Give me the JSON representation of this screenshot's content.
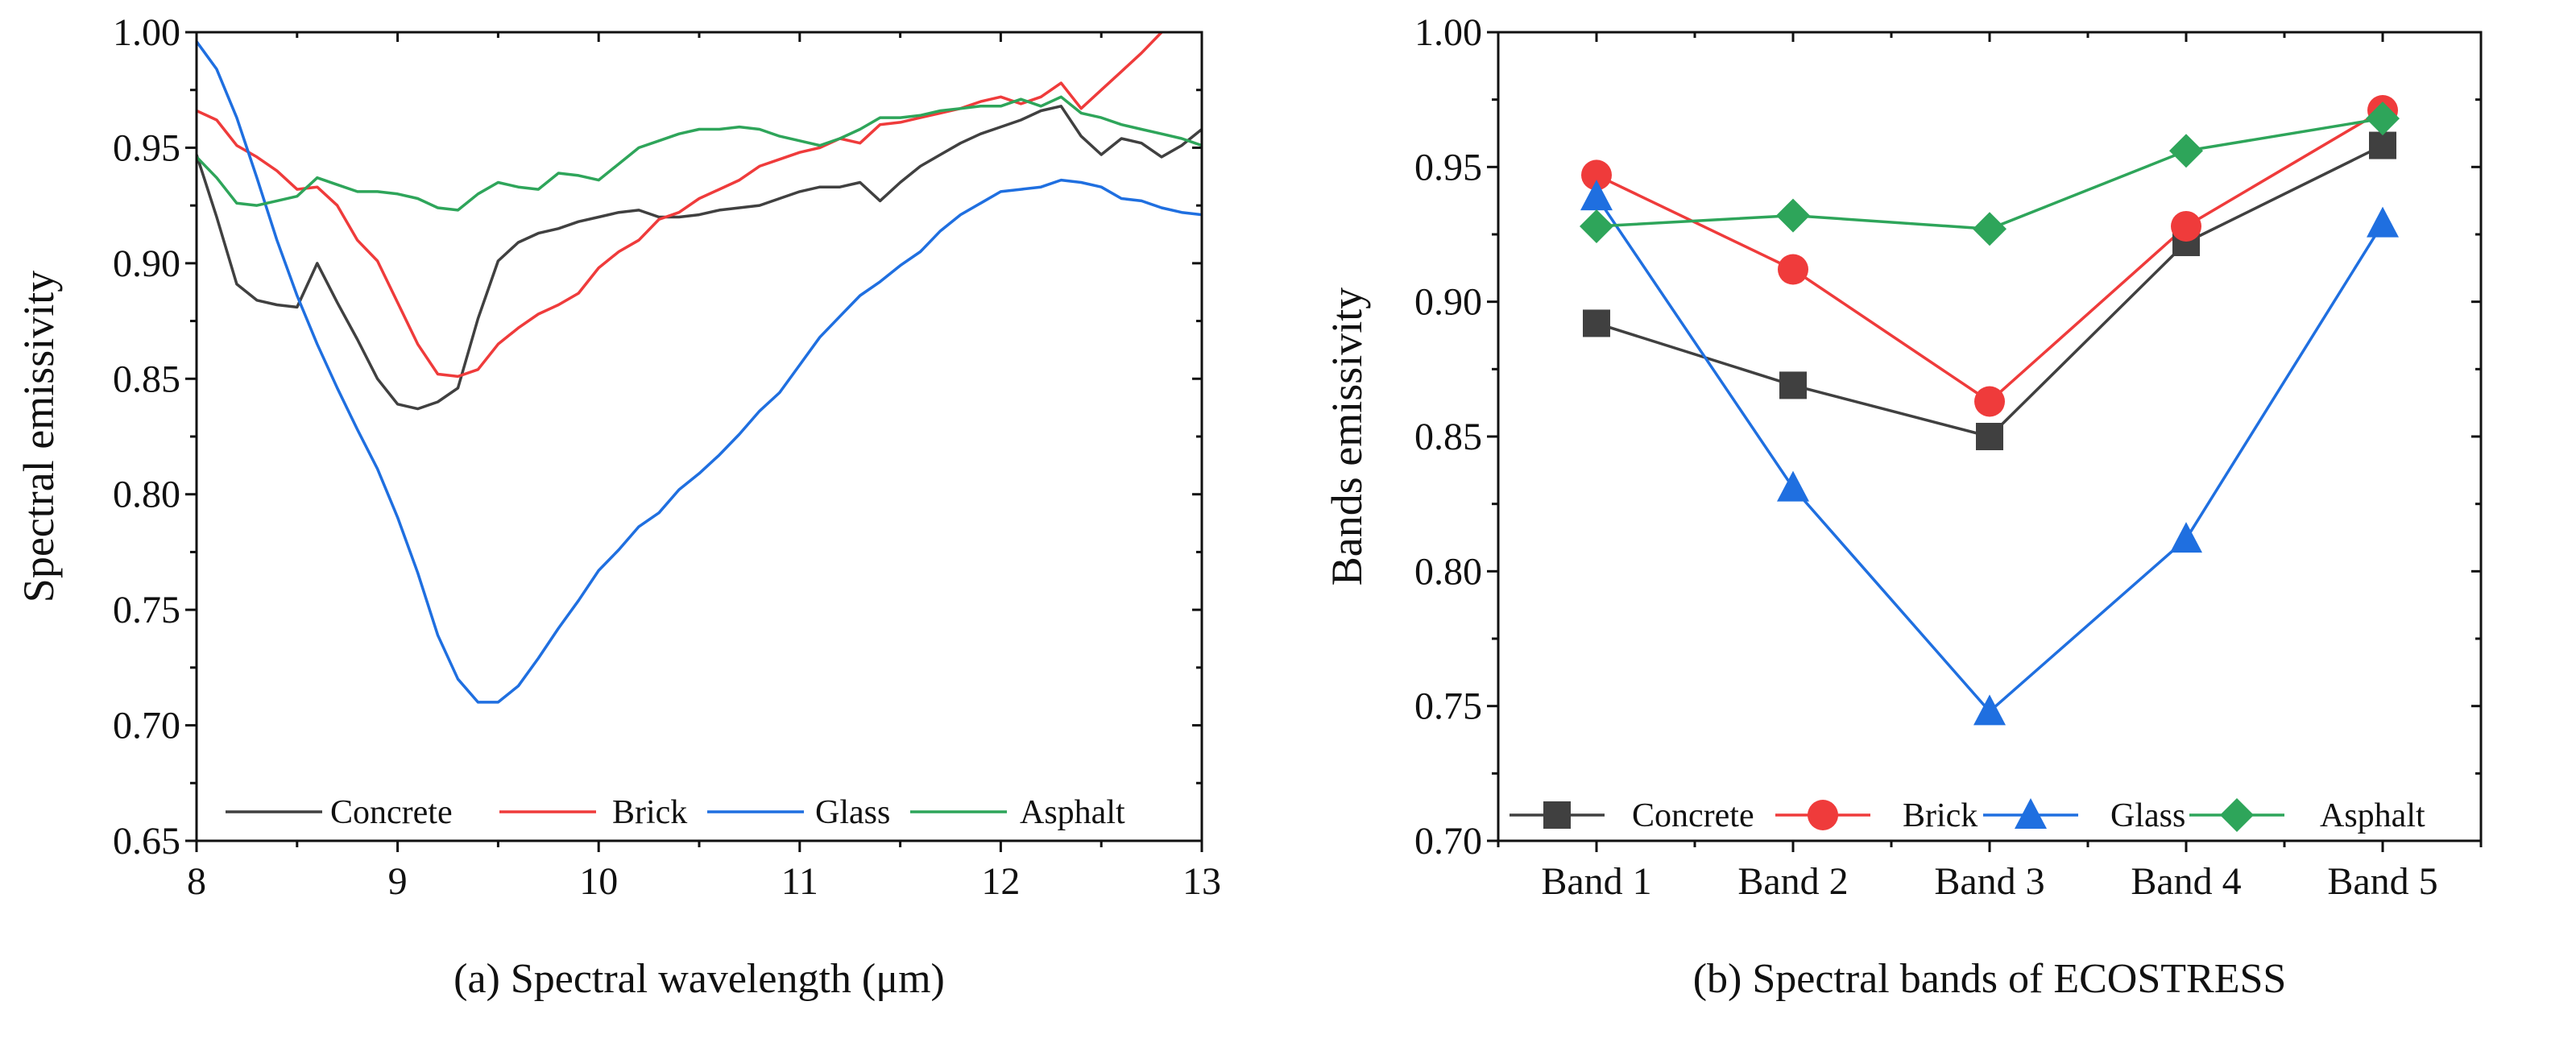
{
  "colors": {
    "Concrete": "#404040",
    "Brick": "#ef3b3b",
    "Glass": "#1f6fe0",
    "Asphalt": "#2ea55a"
  },
  "chart_data": [
    {
      "type": "line",
      "caption": "(a) Spectral wavelength (μm)",
      "xlabel": "",
      "ylabel": "Spectral emissivity",
      "xlim": [
        8,
        13
      ],
      "ylim": [
        0.65,
        1.0
      ],
      "xticks": [
        "8",
        "9",
        "10",
        "11",
        "12",
        "13"
      ],
      "yticks": [
        "0.65",
        "0.70",
        "0.75",
        "0.80",
        "0.85",
        "0.90",
        "0.95",
        "1.00"
      ],
      "legend": "bottom",
      "grid": false,
      "x_start": 8.0,
      "x_step": 0.1,
      "series": [
        {
          "name": "Concrete",
          "values": [
            0.947,
            0.92,
            0.891,
            0.884,
            0.882,
            0.881,
            0.9,
            0.883,
            0.867,
            0.85,
            0.839,
            0.837,
            0.84,
            0.846,
            0.876,
            0.901,
            0.909,
            0.913,
            0.915,
            0.918,
            0.92,
            0.922,
            0.923,
            0.92,
            0.92,
            0.921,
            0.923,
            0.924,
            0.925,
            0.928,
            0.931,
            0.933,
            0.933,
            0.935,
            0.927,
            0.935,
            0.942,
            0.947,
            0.952,
            0.956,
            0.959,
            0.962,
            0.966,
            0.968,
            0.955,
            0.947,
            0.954,
            0.952,
            0.946,
            0.951,
            0.958
          ]
        },
        {
          "name": "Brick",
          "values": [
            0.966,
            0.962,
            0.951,
            0.946,
            0.94,
            0.932,
            0.933,
            0.925,
            0.91,
            0.901,
            0.883,
            0.865,
            0.852,
            0.851,
            0.854,
            0.865,
            0.872,
            0.878,
            0.882,
            0.887,
            0.898,
            0.905,
            0.91,
            0.919,
            0.922,
            0.928,
            0.932,
            0.936,
            0.942,
            0.945,
            0.948,
            0.95,
            0.954,
            0.952,
            0.96,
            0.961,
            0.963,
            0.965,
            0.967,
            0.97,
            0.972,
            0.969,
            0.972,
            0.978,
            0.967,
            0.975,
            0.983,
            0.991,
            1.0,
            1.008,
            1.016
          ]
        },
        {
          "name": "Glass",
          "values": [
            0.996,
            0.984,
            0.963,
            0.937,
            0.91,
            0.886,
            0.865,
            0.846,
            0.828,
            0.811,
            0.79,
            0.766,
            0.739,
            0.72,
            0.71,
            0.71,
            0.717,
            0.729,
            0.742,
            0.754,
            0.767,
            0.776,
            0.786,
            0.792,
            0.802,
            0.809,
            0.817,
            0.826,
            0.836,
            0.844,
            0.856,
            0.868,
            0.877,
            0.886,
            0.892,
            0.899,
            0.905,
            0.914,
            0.921,
            0.926,
            0.931,
            0.932,
            0.933,
            0.936,
            0.935,
            0.933,
            0.928,
            0.927,
            0.924,
            0.922,
            0.921
          ]
        },
        {
          "name": "Asphalt",
          "values": [
            0.946,
            0.937,
            0.926,
            0.925,
            0.927,
            0.929,
            0.937,
            0.934,
            0.931,
            0.931,
            0.93,
            0.928,
            0.924,
            0.923,
            0.93,
            0.935,
            0.933,
            0.932,
            0.939,
            0.938,
            0.936,
            0.943,
            0.95,
            0.953,
            0.956,
            0.958,
            0.958,
            0.959,
            0.958,
            0.955,
            0.953,
            0.951,
            0.954,
            0.958,
            0.963,
            0.963,
            0.964,
            0.966,
            0.967,
            0.968,
            0.968,
            0.971,
            0.968,
            0.972,
            0.965,
            0.963,
            0.96,
            0.958,
            0.956,
            0.954,
            0.951
          ]
        }
      ]
    },
    {
      "type": "line",
      "caption": "(b) Spectral bands of ECOSTRESS",
      "xlabel": "",
      "ylabel": "Bands emissivity",
      "ylim": [
        0.7,
        1.0
      ],
      "categories": [
        "Band 1",
        "Band 2",
        "Band 3",
        "Band 4",
        "Band 5"
      ],
      "yticks": [
        "0.70",
        "0.75",
        "0.80",
        "0.85",
        "0.90",
        "0.95",
        "1.00"
      ],
      "legend": "bottom",
      "grid": false,
      "series": [
        {
          "name": "Concrete",
          "marker": "square",
          "values": [
            0.892,
            0.869,
            0.85,
            0.922,
            0.958
          ]
        },
        {
          "name": "Brick",
          "marker": "circle",
          "values": [
            0.947,
            0.912,
            0.863,
            0.928,
            0.971
          ]
        },
        {
          "name": "Glass",
          "marker": "triangle",
          "values": [
            0.939,
            0.831,
            0.748,
            0.812,
            0.929
          ]
        },
        {
          "name": "Asphalt",
          "marker": "diamond",
          "values": [
            0.928,
            0.932,
            0.927,
            0.956,
            0.968
          ]
        }
      ]
    }
  ]
}
